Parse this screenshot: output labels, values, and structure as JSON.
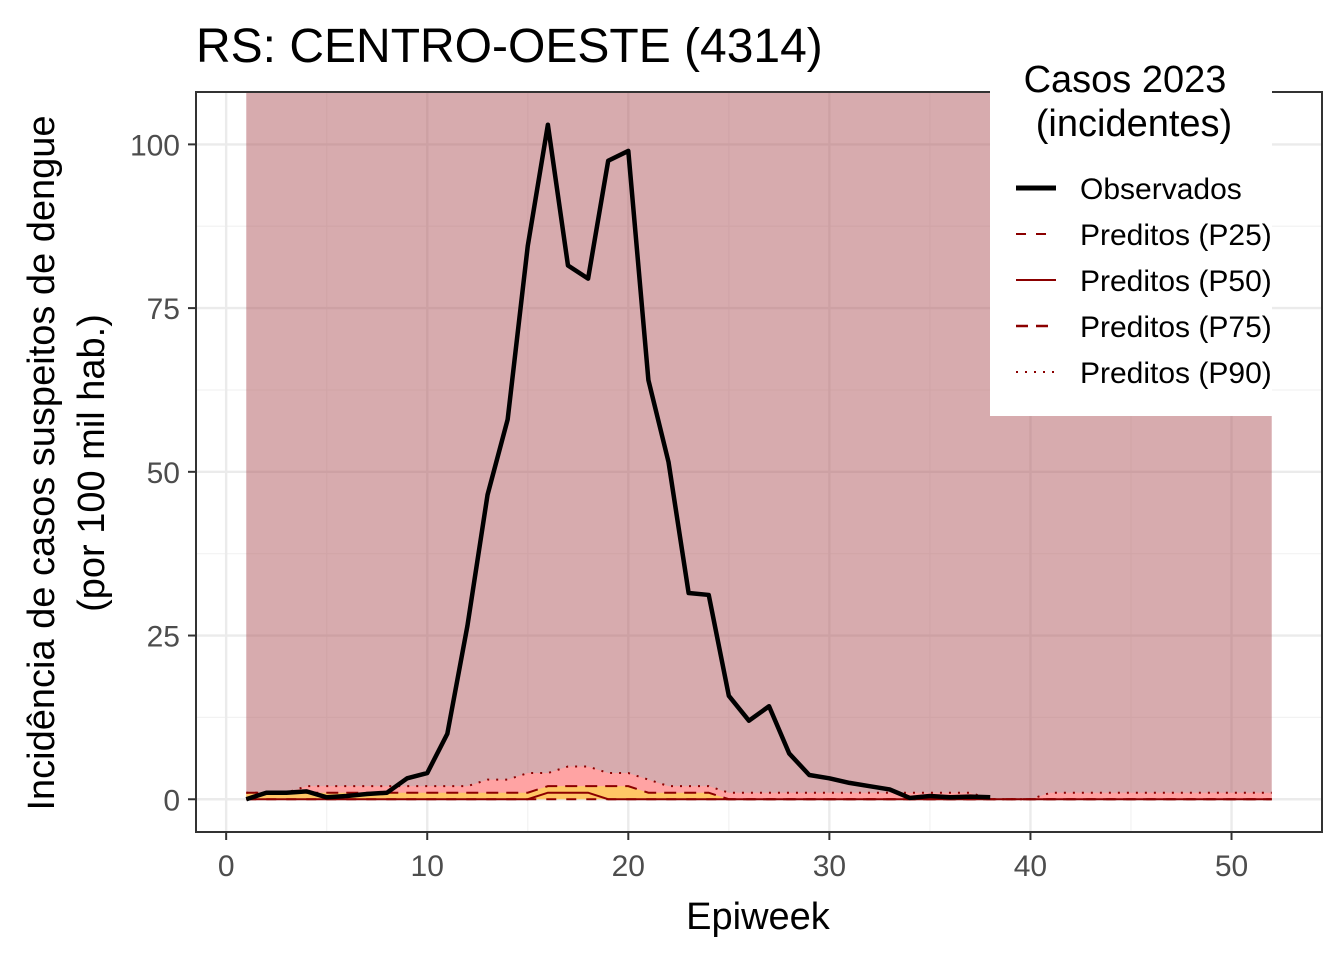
{
  "chart_data": {
    "type": "line",
    "title": "RS: CENTRO-OESTE (4314)",
    "xlabel": "Epiweek",
    "ylabel_line1": "Incidência de casos suspeitos de dengue",
    "ylabel_line2": "(por 100 mil hab.)",
    "xlim": [
      -1.5,
      54.5
    ],
    "ylim": [
      -5,
      108
    ],
    "xticks": [
      0,
      10,
      20,
      30,
      40,
      50
    ],
    "yticks": [
      0,
      25,
      50,
      75,
      100
    ],
    "grid": true,
    "legend": {
      "title_line1": "Casos 2023",
      "title_line2": "(incidentes)",
      "position": "top-right",
      "entries": [
        "Observados",
        "Preditos (P25)",
        "Preditos (P50)",
        "Preditos (P75)",
        "Preditos (P90)"
      ]
    },
    "background_band": {
      "x": [
        1,
        52
      ],
      "ymax": 108,
      "color": "#d5a6a8"
    },
    "colors": {
      "observed": "#000000",
      "predicted": "#8b0000",
      "band_p90": "#ffa3a3",
      "band_p75": "#ffc766",
      "background": "#d5a6a8"
    },
    "series": [
      {
        "name": "Observados",
        "x": [
          1,
          2,
          3,
          4,
          5,
          6,
          7,
          8,
          9,
          10,
          11,
          12,
          13,
          14,
          15,
          16,
          17,
          18,
          19,
          20,
          21,
          22,
          23,
          24,
          25,
          26,
          27,
          28,
          29,
          30,
          31,
          32,
          33,
          34,
          35,
          36,
          37,
          38
        ],
        "values": [
          0,
          1,
          1,
          1.2,
          0.3,
          0.5,
          0.8,
          1,
          3.2,
          4,
          10,
          26.5,
          46.5,
          58,
          84.5,
          103,
          81.5,
          79.5,
          97.5,
          99,
          64,
          51.5,
          31.5,
          31.2,
          15.8,
          12,
          14.2,
          7,
          3.7,
          3.2,
          2.5,
          2,
          1.5,
          0.2,
          0.5,
          0.3,
          0.4,
          0.3
        ]
      },
      {
        "name": "Preditos (P25)",
        "x": [
          1,
          15,
          16,
          17,
          18,
          19,
          20,
          52
        ],
        "values": [
          0,
          0,
          0,
          0,
          0,
          0,
          0,
          0
        ]
      },
      {
        "name": "Preditos (P50)",
        "x": [
          1,
          15,
          16,
          17,
          18,
          19,
          20,
          21,
          52
        ],
        "values": [
          0,
          0,
          1,
          1,
          1,
          0,
          0,
          0,
          0
        ]
      },
      {
        "name": "Preditos (P75)",
        "x": [
          1,
          2,
          3,
          8,
          9,
          10,
          11,
          12,
          13,
          14,
          15,
          16,
          17,
          18,
          19,
          20,
          21,
          22,
          23,
          24,
          25,
          26,
          52
        ],
        "values": [
          1,
          1,
          1,
          1,
          1,
          1,
          1,
          1,
          1,
          1,
          1,
          2,
          2,
          2,
          2,
          2,
          1,
          1,
          1,
          1,
          0,
          0,
          0
        ]
      },
      {
        "name": "Preditos (P90)",
        "x": [
          1,
          2,
          3,
          4,
          5,
          6,
          7,
          8,
          9,
          10,
          11,
          12,
          13,
          14,
          15,
          16,
          17,
          18,
          19,
          20,
          21,
          22,
          23,
          24,
          25,
          26,
          27,
          28,
          29,
          30,
          31,
          32,
          33,
          34,
          35,
          36,
          37,
          38,
          39,
          40,
          41,
          42,
          43,
          44,
          45,
          46,
          47,
          48,
          49,
          50,
          51,
          52
        ],
        "values": [
          1,
          1,
          1,
          2,
          2,
          2,
          2,
          2,
          2,
          2,
          2,
          2,
          3,
          3,
          4,
          4,
          5,
          5,
          4,
          4,
          3,
          2,
          2,
          2,
          1,
          1,
          1,
          1,
          1,
          1,
          1,
          1,
          1,
          1,
          1,
          1,
          1,
          0,
          0,
          0,
          1,
          1,
          1,
          1,
          1,
          1,
          1,
          1,
          1,
          1,
          1,
          1
        ]
      }
    ]
  }
}
